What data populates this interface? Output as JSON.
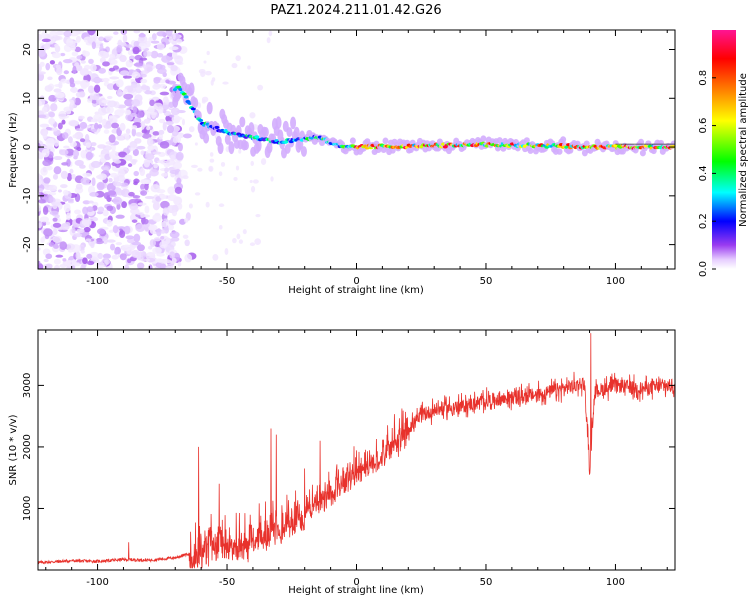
{
  "title": "PAZ1.2024.211.01.42.G26",
  "colors": {
    "snr_line": "#e8322c",
    "axis": "#000000"
  },
  "chart_data": [
    {
      "type": "heatmap",
      "xlabel": "Height of straight line (km)",
      "ylabel": "Frequency (Hz)",
      "xlim": [
        -123,
        123
      ],
      "ylim": [
        -25,
        24
      ],
      "xticks": [
        -100,
        -50,
        0,
        50,
        100
      ],
      "xtick_labels": [
        "-100",
        "-50",
        "0",
        "50",
        "100"
      ],
      "yticks": [
        -20,
        -10,
        0,
        10,
        20
      ],
      "ytick_labels": [
        "-20",
        "-10",
        "0",
        "10",
        "20"
      ],
      "description_ridge": [
        [
          -68,
          12
        ],
        [
          -60,
          5
        ],
        [
          -50,
          3
        ],
        [
          -40,
          2
        ],
        [
          -30,
          1
        ],
        [
          -15,
          2
        ],
        [
          -5,
          0
        ],
        [
          0,
          0
        ],
        [
          50,
          0.5
        ],
        [
          100,
          0
        ],
        [
          123,
          0
        ]
      ],
      "colorbar": {
        "label": "Normalized spectral amplitude",
        "range": [
          0,
          1
        ],
        "ticks": [
          0.0,
          0.2,
          0.4,
          0.6,
          0.8
        ],
        "tick_labels": [
          "0.0",
          "0.2",
          "0.4",
          "0.6",
          "0.8"
        ],
        "colormap": [
          "#ffffff",
          "#d9b8ff",
          "#8a2be2",
          "#0000ff",
          "#00ffff",
          "#00ff00",
          "#ffff00",
          "#ff7f00",
          "#ff0000",
          "#ff1493"
        ]
      },
      "grid": false
    },
    {
      "type": "line",
      "xlabel": "Height of straight line (km)",
      "ylabel": "SNR (10 * v/v)",
      "xlim": [
        -123,
        123
      ],
      "ylim": [
        0,
        3900
      ],
      "xticks": [
        -100,
        -50,
        0,
        50,
        100
      ],
      "xtick_labels": [
        "-100",
        "-50",
        "0",
        "50",
        "100"
      ],
      "yticks": [
        1000,
        2000,
        3000
      ],
      "ytick_labels": [
        "1000",
        "2000",
        "3000"
      ],
      "series": [
        {
          "x": [
            -123,
            -110,
            -100,
            -90,
            -80,
            -70,
            -65,
            -60,
            -55,
            -50,
            -45,
            -40,
            -35,
            -30,
            -25,
            -20,
            -15,
            -10,
            -5,
            0,
            5,
            10,
            15,
            20,
            25,
            30,
            40,
            50,
            60,
            70,
            80,
            88,
            90,
            92,
            100,
            110,
            123
          ],
          "y": [
            120,
            150,
            140,
            170,
            160,
            200,
            260,
            400,
            500,
            480,
            500,
            600,
            700,
            750,
            900,
            1000,
            1200,
            1300,
            1500,
            1650,
            1800,
            1950,
            2150,
            2300,
            2500,
            2600,
            2650,
            2750,
            2800,
            2850,
            2950,
            3050,
            1700,
            2900,
            3000,
            2950,
            3000
          ],
          "spikes": [
            [
              -88,
              450
            ],
            [
              -61,
              2000
            ],
            [
              -53,
              1400
            ],
            [
              -33,
              2300
            ],
            [
              -31,
              2200
            ],
            [
              -20,
              1650
            ],
            [
              -14,
              2100
            ],
            [
              90.5,
              3850
            ],
            [
              90,
              1550
            ]
          ]
        }
      ],
      "grid": false
    }
  ]
}
